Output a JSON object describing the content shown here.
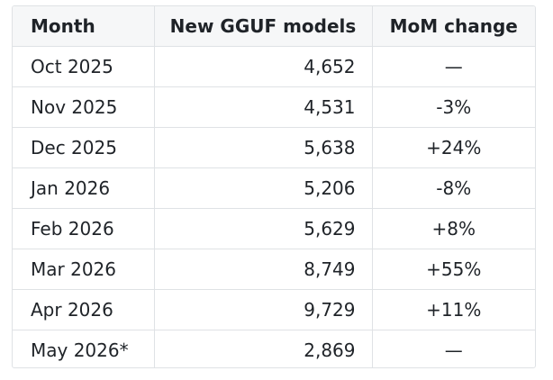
{
  "table": {
    "headers": {
      "month": "Month",
      "models": "New GGUF models",
      "change": "MoM change"
    },
    "rows": [
      {
        "month": "Oct 2025",
        "models": "4,652",
        "change": "—"
      },
      {
        "month": "Nov 2025",
        "models": "4,531",
        "change": "-3%"
      },
      {
        "month": "Dec 2025",
        "models": "5,638",
        "change": "+24%"
      },
      {
        "month": "Jan 2026",
        "models": "5,206",
        "change": "-8%"
      },
      {
        "month": "Feb 2026",
        "models": "5,629",
        "change": "+8%"
      },
      {
        "month": "Mar 2026",
        "models": "8,749",
        "change": "+55%"
      },
      {
        "month": "Apr 2026",
        "models": "9,729",
        "change": "+11%"
      },
      {
        "month": "May 2026*",
        "models": "2,869",
        "change": "—"
      }
    ]
  }
}
